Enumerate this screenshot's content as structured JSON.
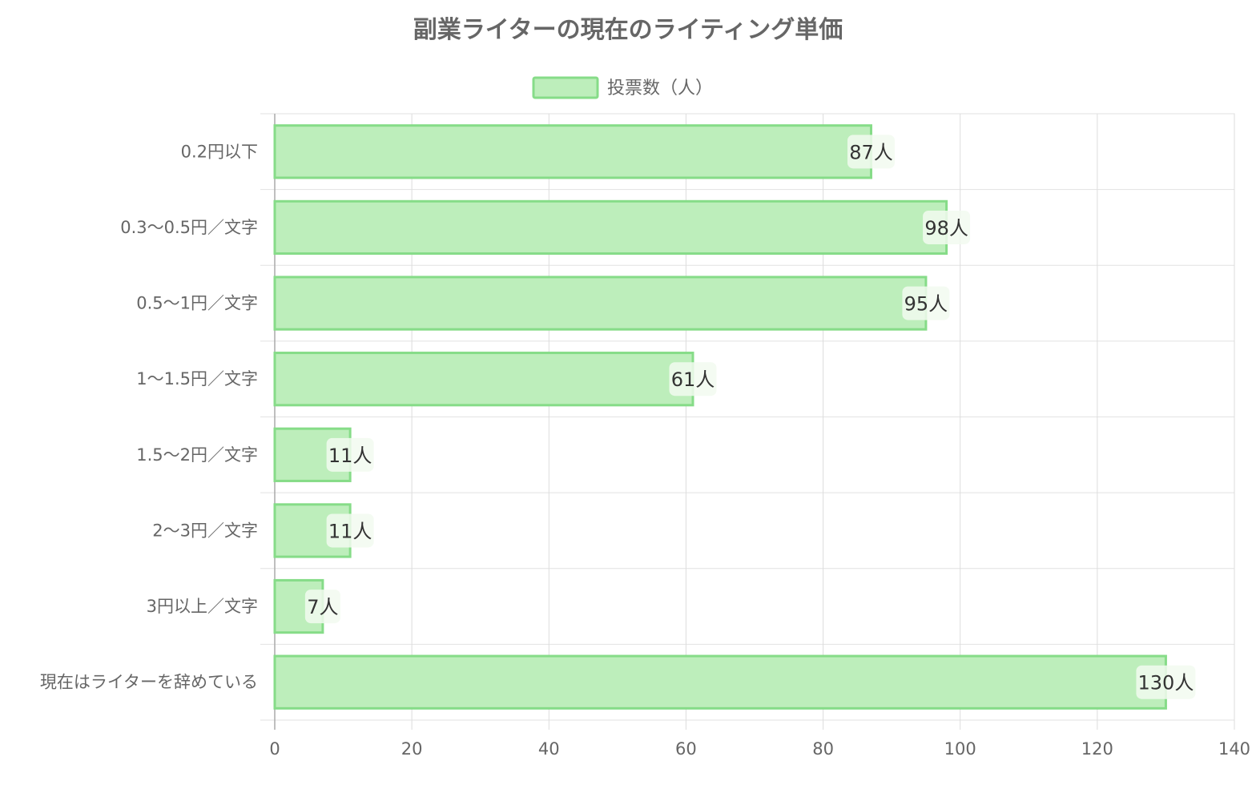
{
  "chart_data": {
    "type": "bar",
    "orientation": "horizontal",
    "title": "副業ライターの現在のライティング単価",
    "legend": {
      "position": "top",
      "entries": [
        "投票数（人）"
      ]
    },
    "categories": [
      "0.2円以下",
      "0.3〜0.5円／文字",
      "0.5〜1円／文字",
      "1〜1.5円／文字",
      "1.5〜2円／文字",
      "2〜3円／文字",
      "3円以上／文字",
      "現在はライターを辞めている"
    ],
    "series": [
      {
        "name": "投票数（人）",
        "values": [
          87,
          98,
          95,
          61,
          11,
          11,
          7,
          130
        ]
      }
    ],
    "data_labels": [
      "87人",
      "98人",
      "95人",
      "61人",
      "11人",
      "11人",
      "7人",
      "130人"
    ],
    "xlim": [
      0,
      140
    ],
    "xticks": [
      0,
      20,
      40,
      60,
      80,
      100,
      120,
      140
    ],
    "grid": true,
    "colors": {
      "bar_fill": "#bdeebb",
      "bar_border": "#86dc88",
      "label_bg": "#f2faf0"
    }
  }
}
